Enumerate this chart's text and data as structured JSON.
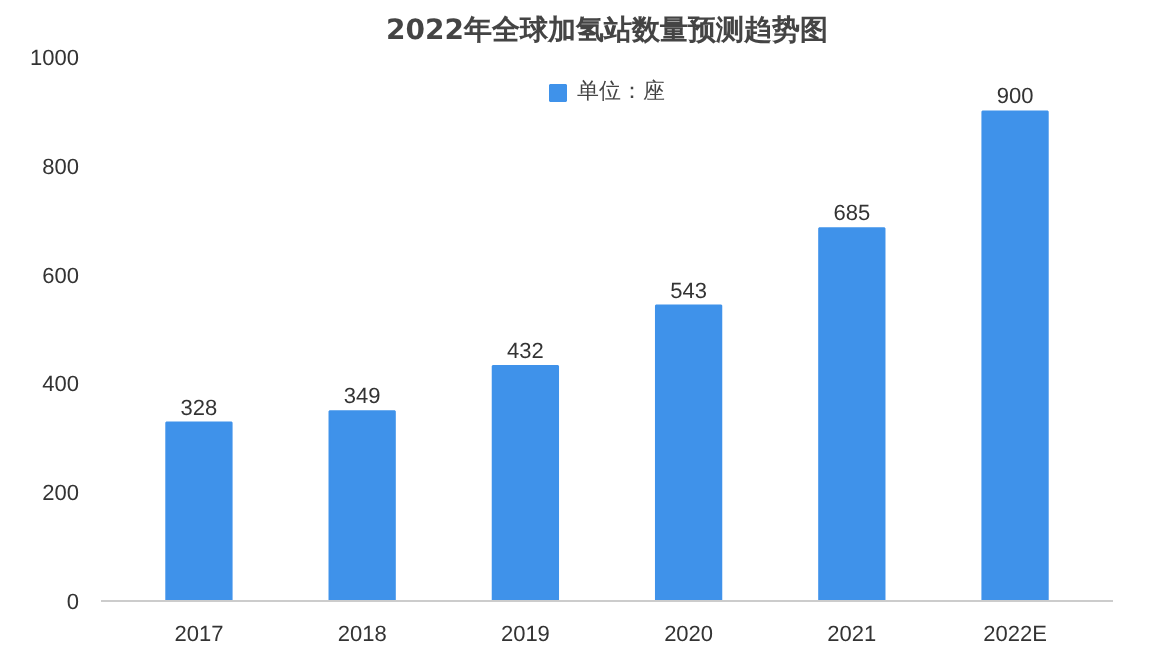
{
  "chart_data": {
    "type": "bar",
    "title": "2022年全球加氢站数量预测趋势图",
    "categories": [
      "2017",
      "2018",
      "2019",
      "2020",
      "2021",
      "2022E"
    ],
    "series": [
      {
        "name": "单位：座",
        "color": "#3f92ea",
        "values": [
          328,
          349,
          432,
          543,
          685,
          900
        ]
      }
    ],
    "ylim": [
      0,
      1000
    ],
    "yticks": [
      0,
      200,
      400,
      600,
      800,
      1000
    ],
    "grid": false,
    "legend": "top",
    "data_labels": true
  }
}
